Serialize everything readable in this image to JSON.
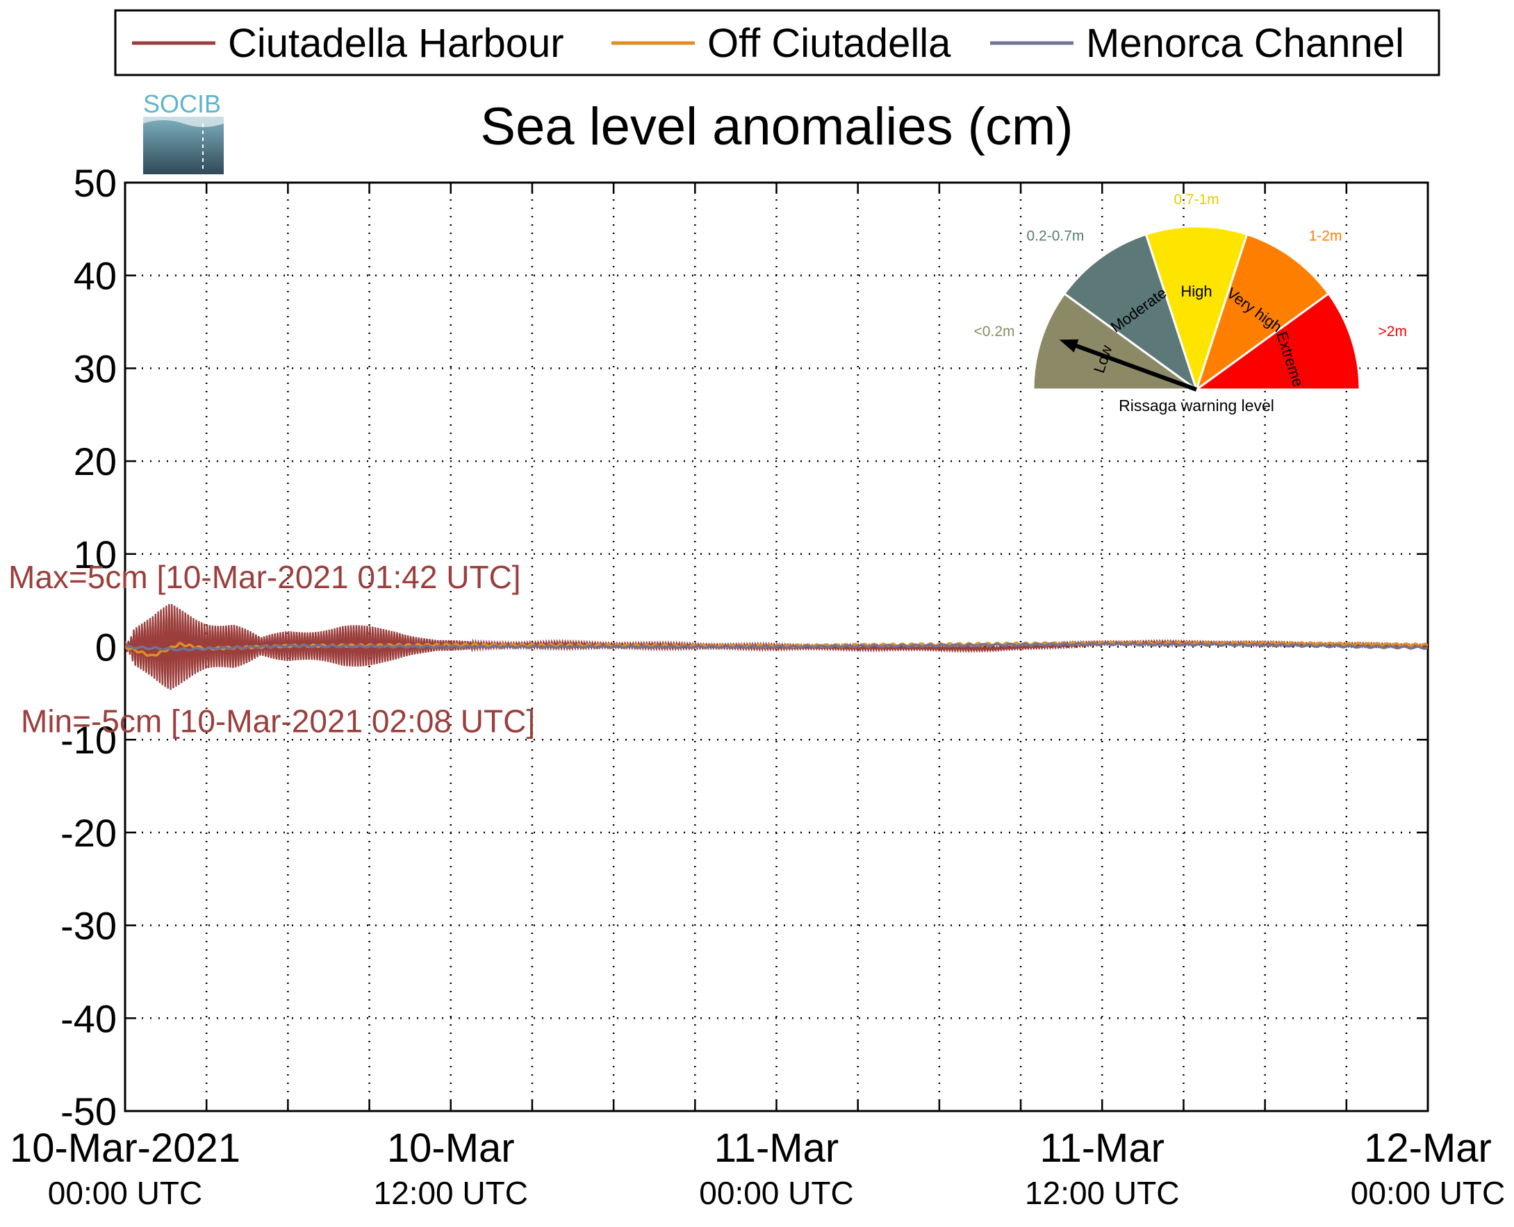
{
  "logo": {
    "text": "SOCIB"
  },
  "chart_data": {
    "type": "line",
    "title": "Sea level anomalies (cm)",
    "xlabel": "",
    "ylabel": "",
    "ylim": [
      -50,
      50
    ],
    "yticks": [
      -50,
      -40,
      -30,
      -20,
      -10,
      0,
      10,
      20,
      30,
      40,
      50
    ],
    "xlim": [
      "2021-03-10 00:00",
      "2021-03-12 00:00"
    ],
    "x_minor_ticks_hours": 3,
    "x_tick_labels": [
      {
        "date": "2021-03-10 00:00",
        "line1": "10-Mar-2021",
        "line2": "00:00 UTC"
      },
      {
        "date": "2021-03-10 12:00",
        "line1": "10-Mar",
        "line2": "12:00 UTC"
      },
      {
        "date": "2021-03-11 00:00",
        "line1": "11-Mar",
        "line2": "00:00 UTC"
      },
      {
        "date": "2021-03-11 12:00",
        "line1": "11-Mar",
        "line2": "12:00 UTC"
      },
      {
        "date": "2021-03-12 00:00",
        "line1": "12-Mar",
        "line2": "00:00 UTC"
      }
    ],
    "grid": true,
    "legend_position": "top",
    "series": [
      {
        "name": "Ciutadella Harbour",
        "color": "#9b3e3c",
        "envelope": [
          {
            "x": "2021-03-10 00:00",
            "amp": 0.5
          },
          {
            "x": "2021-03-10 00:10",
            "amp": 1.0
          },
          {
            "x": "2021-03-10 00:20",
            "amp": 2.5
          },
          {
            "x": "2021-03-10 01:00",
            "amp": 3.5
          },
          {
            "x": "2021-03-10 01:40",
            "amp": 5.0
          },
          {
            "x": "2021-03-10 02:10",
            "amp": 4.5
          },
          {
            "x": "2021-03-10 03:00",
            "amp": 3.5
          },
          {
            "x": "2021-03-10 04:00",
            "amp": 3.0
          },
          {
            "x": "2021-03-10 05:00",
            "amp": 1.0
          },
          {
            "x": "2021-03-10 06:00",
            "amp": 2.0
          },
          {
            "x": "2021-03-10 08:00",
            "amp": 2.5
          },
          {
            "x": "2021-03-10 10:00",
            "amp": 2.0
          },
          {
            "x": "2021-03-10 11:30",
            "amp": 0.7
          },
          {
            "x": "2021-03-10 13:00",
            "amp": 0.4
          },
          {
            "x": "2021-03-11 00:00",
            "amp": 0.3
          },
          {
            "x": "2021-03-12 00:00",
            "amp": 0.2
          }
        ],
        "baseline": [
          {
            "x": "2021-03-10 00:00",
            "y": 0.0
          },
          {
            "x": "2021-03-10 16:00",
            "y": 0.2
          },
          {
            "x": "2021-03-11 08:00",
            "y": -0.2
          },
          {
            "x": "2021-03-11 12:00",
            "y": 0.4
          },
          {
            "x": "2021-03-11 16:00",
            "y": 0.4
          },
          {
            "x": "2021-03-12 00:00",
            "y": 0.1
          }
        ]
      },
      {
        "name": "Off Ciutadella",
        "color": "#e08e23",
        "values": [
          {
            "x": "2021-03-10 00:00",
            "y": 0.0
          },
          {
            "x": "2021-03-10 01:00",
            "y": -1.0
          },
          {
            "x": "2021-03-10 02:00",
            "y": 0.3
          },
          {
            "x": "2021-03-10 03:00",
            "y": -0.2
          },
          {
            "x": "2021-03-10 06:00",
            "y": 0.1
          },
          {
            "x": "2021-03-10 12:00",
            "y": 0.2
          },
          {
            "x": "2021-03-11 00:00",
            "y": 0.1
          },
          {
            "x": "2021-03-11 12:00",
            "y": 0.4
          },
          {
            "x": "2021-03-11 18:00",
            "y": 0.4
          },
          {
            "x": "2021-03-12 00:00",
            "y": 0.2
          }
        ]
      },
      {
        "name": "Menorca Channel",
        "color": "#6f7396",
        "values": [
          {
            "x": "2021-03-10 00:00",
            "y": 0.0
          },
          {
            "x": "2021-03-10 02:00",
            "y": -0.3
          },
          {
            "x": "2021-03-10 06:00",
            "y": 0.1
          },
          {
            "x": "2021-03-10 12:00",
            "y": 0.0
          },
          {
            "x": "2021-03-11 00:00",
            "y": 0.0
          },
          {
            "x": "2021-03-11 12:00",
            "y": 0.3
          },
          {
            "x": "2021-03-11 18:00",
            "y": 0.2
          },
          {
            "x": "2021-03-12 00:00",
            "y": -0.1
          }
        ]
      }
    ],
    "annotations": [
      {
        "text": "Max=5cm [10-Mar-2021 01:42 UTC]",
        "color": "#9b3e3c",
        "x": "2021-03-10 00:00",
        "y": 7.5
      },
      {
        "text": "Min=-5cm [10-Mar-2021 02:08 UTC]",
        "color": "#9b3e3c",
        "x": "2021-03-10 00:00",
        "y": -8.0
      }
    ]
  },
  "gauge": {
    "caption": "Rissaga warning level",
    "needle_level": "Low",
    "needle_angle_deg": 160,
    "segments": [
      {
        "label": "Low",
        "range": "<0.2m",
        "color": "#8c8a66"
      },
      {
        "label": "Moderate",
        "range": "0.2-0.7m",
        "color": "#5d7878"
      },
      {
        "label": "High",
        "range": "0.7-1m",
        "color": "#fde500"
      },
      {
        "label": "Very high",
        "range": "1-2m",
        "color": "#fe7f00"
      },
      {
        "label": "Extreme",
        "range": ">2m",
        "color": "#fc0000"
      }
    ]
  }
}
